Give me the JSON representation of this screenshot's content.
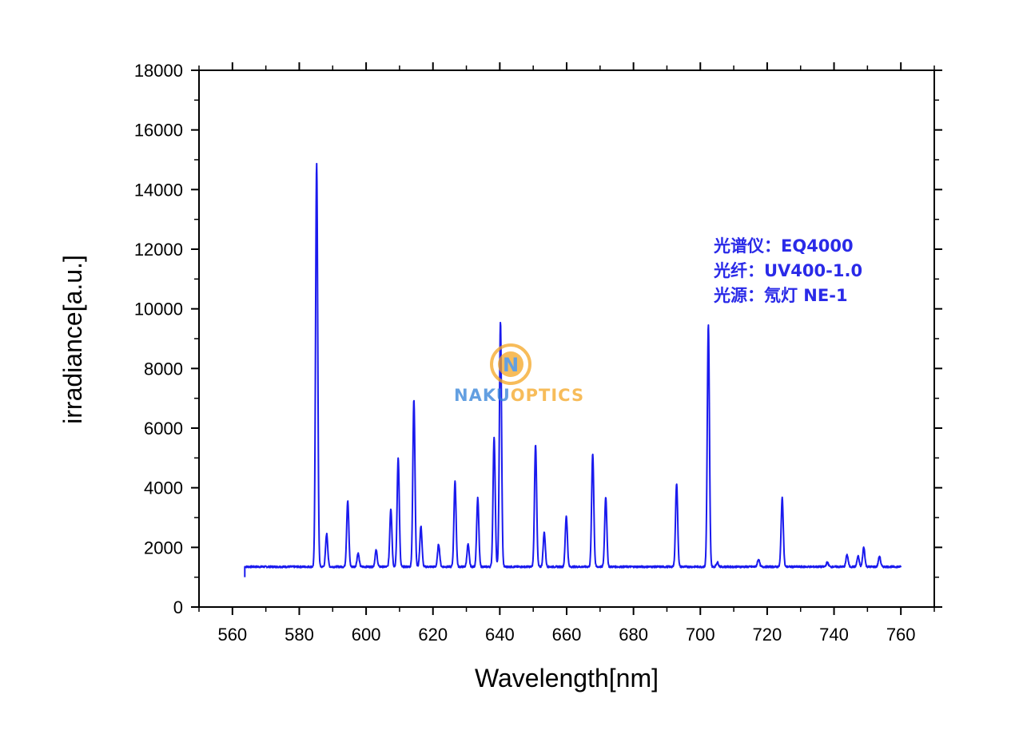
{
  "chart_data": {
    "type": "line",
    "title": "",
    "xlabel": "Wavelength[nm]",
    "ylabel": "irradiance[a.u.]",
    "xlim": [
      550,
      770
    ],
    "ylim": [
      0,
      18000
    ],
    "x_ticks": [
      560,
      580,
      600,
      620,
      640,
      660,
      680,
      700,
      720,
      740,
      760
    ],
    "y_ticks": [
      0,
      2000,
      4000,
      6000,
      8000,
      10000,
      12000,
      14000,
      16000,
      18000
    ],
    "grid": false,
    "legend": "none",
    "series_color": "#1a1aee",
    "baseline": 1350,
    "x_range": [
      563.7,
      760
    ],
    "peaks": [
      {
        "x": 585.2,
        "y": 14850
      },
      {
        "x": 588.2,
        "y": 2450
      },
      {
        "x": 594.5,
        "y": 3550
      },
      {
        "x": 597.6,
        "y": 1800
      },
      {
        "x": 603.0,
        "y": 1900
      },
      {
        "x": 607.4,
        "y": 3300
      },
      {
        "x": 609.6,
        "y": 5000
      },
      {
        "x": 614.3,
        "y": 6950
      },
      {
        "x": 616.4,
        "y": 2700
      },
      {
        "x": 621.7,
        "y": 2100
      },
      {
        "x": 626.6,
        "y": 4200
      },
      {
        "x": 630.5,
        "y": 2100
      },
      {
        "x": 633.4,
        "y": 3650
      },
      {
        "x": 638.3,
        "y": 5700
      },
      {
        "x": 640.2,
        "y": 9550
      },
      {
        "x": 650.7,
        "y": 5450
      },
      {
        "x": 653.3,
        "y": 2500
      },
      {
        "x": 659.9,
        "y": 3050
      },
      {
        "x": 667.8,
        "y": 5150
      },
      {
        "x": 671.7,
        "y": 3700
      },
      {
        "x": 692.9,
        "y": 4150
      },
      {
        "x": 702.4,
        "y": 9450
      },
      {
        "x": 705.1,
        "y": 1500
      },
      {
        "x": 717.4,
        "y": 1600
      },
      {
        "x": 724.5,
        "y": 3650
      },
      {
        "x": 738.0,
        "y": 1500
      },
      {
        "x": 743.9,
        "y": 1750
      },
      {
        "x": 747.2,
        "y": 1700
      },
      {
        "x": 748.9,
        "y": 2000
      },
      {
        "x": 753.6,
        "y": 1700
      }
    ],
    "annotations": [
      "光谱仪：EQ4000",
      "光纤：UV400-1.0",
      "光源：氖灯 NE-1"
    ]
  },
  "watermark": {
    "logo_letter": "N",
    "text_part1": "NAKU",
    "text_part2": "OPTICS",
    "color_blue": "#2f80d8",
    "color_orange": "#f5a623"
  }
}
